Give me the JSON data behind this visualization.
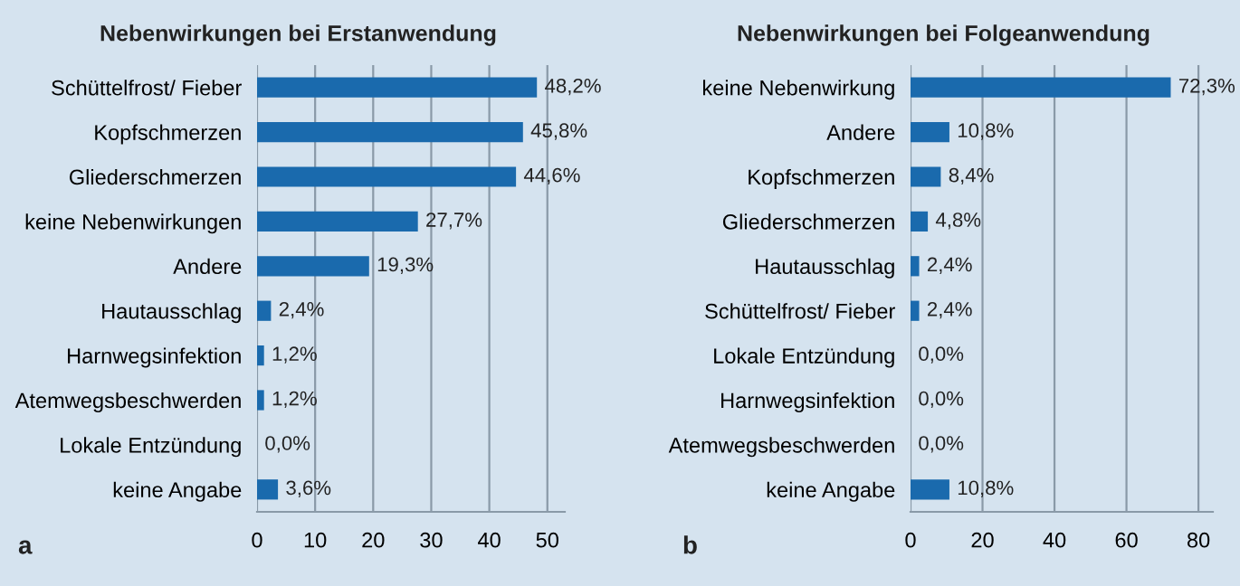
{
  "chart_data": [
    {
      "type": "bar",
      "orientation": "horizontal",
      "title": "Nebenwirkungen bei Erstanwendung",
      "categories": [
        "Schüttelfrost/ Fieber",
        "Kopfschmerzen",
        "Gliederschmerzen",
        "keine Nebenwirkungen",
        "Andere",
        "Hautausschlag",
        "Harnwegsinfektion",
        "Atemwegsbeschwerden",
        "Lokale Entzündung",
        "keine Angabe"
      ],
      "values": [
        48.2,
        45.8,
        44.6,
        27.7,
        19.3,
        2.4,
        1.2,
        1.2,
        0.0,
        3.6
      ],
      "value_labels": [
        "48,2%",
        "45,8%",
        "44,6%",
        "27,7%",
        "19,3%",
        "2,4%",
        "1,2%",
        "1,2%",
        "0,0%",
        "3,6%"
      ],
      "color": "#1a6aad",
      "xlim": [
        0,
        53
      ],
      "xticks": [
        0,
        10,
        20,
        30,
        40,
        50
      ],
      "grid": "x",
      "annotations": [
        "a"
      ]
    },
    {
      "type": "bar",
      "orientation": "horizontal",
      "title": "Nebenwirkungen bei Folgeanwendung",
      "categories": [
        "keine Nebenwirkung",
        "Andere",
        "Kopfschmerzen",
        "Gliederschmerzen",
        "Hautausschlag",
        "Schüttelfrost/ Fieber",
        "Lokale Entzündung",
        "Harnwegsinfektion",
        "Atemwegsbeschwerden",
        "keine Angabe"
      ],
      "values": [
        72.3,
        10.8,
        8.4,
        4.8,
        2.4,
        2.4,
        0.0,
        0.0,
        0.0,
        10.8
      ],
      "value_labels": [
        "72,3%",
        "10,8%",
        "8,4%",
        "4,8%",
        "2,4%",
        "2,4%",
        "0,0%",
        "0,0%",
        "0,0%",
        "10,8%"
      ],
      "color": "#1a6aad",
      "xlim": [
        0,
        84
      ],
      "xticks": [
        0,
        20,
        40,
        60,
        80
      ],
      "grid": "x",
      "annotations": [
        "b"
      ]
    }
  ]
}
